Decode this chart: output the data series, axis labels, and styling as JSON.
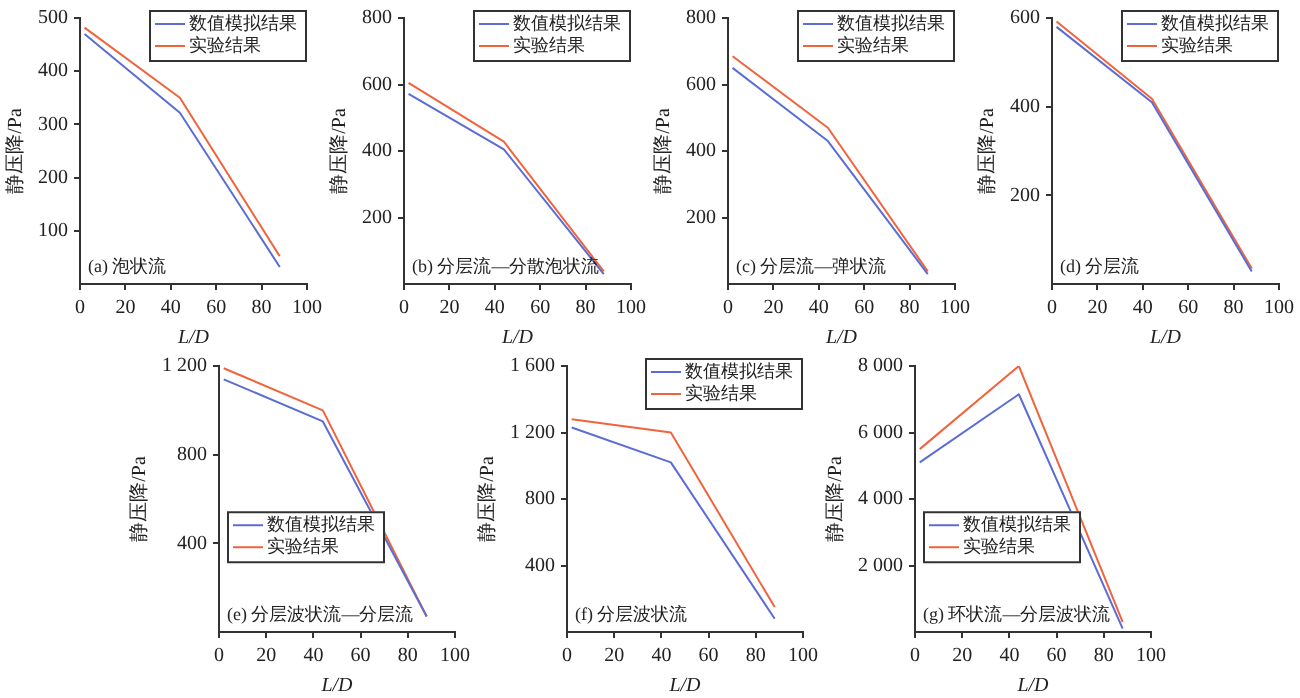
{
  "chart_data": [
    {
      "type": "line",
      "annotations": [
        "(a) 泡状流"
      ],
      "xlabel": "L/D",
      "ylabel": "静压降/Pa",
      "xlim": [
        0,
        100
      ],
      "xticks": [
        0,
        20,
        40,
        60,
        80,
        100
      ],
      "ylim": [
        0,
        500
      ],
      "yticks": [
        100,
        200,
        300,
        400,
        500
      ],
      "grid": false,
      "legend": "top right",
      "x": [
        2,
        44,
        88
      ],
      "series": [
        {
          "name": "数值模拟结果",
          "color": "#5b6cd4",
          "values": [
            470,
            322,
            32
          ]
        },
        {
          "name": "实验结果",
          "color": "#f0643c",
          "values": [
            482,
            350,
            52
          ]
        }
      ]
    },
    {
      "type": "line",
      "annotations": [
        "(b) 分层流—分散泡状流"
      ],
      "xlabel": "L/D",
      "ylabel": "静压降/Pa",
      "xlim": [
        0,
        100
      ],
      "xticks": [
        0,
        20,
        40,
        60,
        80,
        100
      ],
      "ylim": [
        0,
        800
      ],
      "yticks": [
        200,
        400,
        600,
        800
      ],
      "grid": false,
      "legend": "top right",
      "x": [
        2,
        44,
        88
      ],
      "series": [
        {
          "name": "数值模拟结果",
          "color": "#5b6cd4",
          "values": [
            572,
            405,
            30
          ]
        },
        {
          "name": "实验结果",
          "color": "#f0643c",
          "values": [
            605,
            428,
            38
          ]
        }
      ]
    },
    {
      "type": "line",
      "annotations": [
        "(c) 分层流—弹状流"
      ],
      "xlabel": "L/D",
      "ylabel": "静压降/Pa",
      "xlim": [
        0,
        100
      ],
      "xticks": [
        0,
        20,
        40,
        60,
        80,
        100
      ],
      "ylim": [
        0,
        800
      ],
      "yticks": [
        200,
        400,
        600,
        800
      ],
      "grid": false,
      "legend": "top right",
      "x": [
        2,
        44,
        88
      ],
      "series": [
        {
          "name": "数值模拟结果",
          "color": "#5b6cd4",
          "values": [
            650,
            430,
            30
          ]
        },
        {
          "name": "实验结果",
          "color": "#f0643c",
          "values": [
            685,
            470,
            38
          ]
        }
      ]
    },
    {
      "type": "line",
      "annotations": [
        "(d) 分层流"
      ],
      "xlabel": "L/D",
      "ylabel": "静压降/Pa",
      "xlim": [
        0,
        100
      ],
      "xticks": [
        0,
        20,
        40,
        60,
        80,
        100
      ],
      "ylim": [
        0,
        600
      ],
      "yticks": [
        200,
        400,
        600
      ],
      "grid": false,
      "legend": "top right",
      "x": [
        2,
        44,
        88
      ],
      "series": [
        {
          "name": "数值模拟结果",
          "color": "#5b6cd4",
          "values": [
            580,
            410,
            28
          ]
        },
        {
          "name": "实验结果",
          "color": "#f0643c",
          "values": [
            592,
            418,
            35
          ]
        }
      ]
    },
    {
      "type": "line",
      "annotations": [
        "(e) 分层波状流—分层流"
      ],
      "xlabel": "L/D",
      "ylabel": "静压降/Pa",
      "xlim": [
        0,
        100
      ],
      "xticks": [
        0,
        20,
        40,
        60,
        80,
        100
      ],
      "ylim": [
        0,
        1200
      ],
      "yticks": [
        400,
        800,
        {
          "value": 1200,
          "label": "1 200"
        }
      ],
      "grid": false,
      "legend": "left",
      "x": [
        2,
        44,
        88
      ],
      "series": [
        {
          "name": "数值模拟结果",
          "color": "#5b6cd4",
          "values": [
            1140,
            950,
            70
          ]
        },
        {
          "name": "实验结果",
          "color": "#f0643c",
          "values": [
            1190,
            1000,
            70
          ]
        }
      ]
    },
    {
      "type": "line",
      "annotations": [
        "(f) 分层波状流"
      ],
      "xlabel": "L/D",
      "ylabel": "静压降/Pa",
      "xlim": [
        0,
        100
      ],
      "xticks": [
        0,
        20,
        40,
        60,
        80,
        100
      ],
      "ylim": [
        0,
        1600
      ],
      "yticks": [
        400,
        800,
        {
          "value": 1200,
          "label": "1 200"
        },
        {
          "value": 1600,
          "label": "1 600"
        }
      ],
      "grid": false,
      "legend": "top right",
      "x": [
        2,
        44,
        88
      ],
      "series": [
        {
          "name": "数值模拟结果",
          "color": "#5b6cd4",
          "values": [
            1230,
            1020,
            80
          ]
        },
        {
          "name": "实验结果",
          "color": "#f0643c",
          "values": [
            1280,
            1200,
            150
          ]
        }
      ]
    },
    {
      "type": "line",
      "annotations": [
        "(g) 环状流—分层波状流"
      ],
      "xlabel": "L/D",
      "ylabel": "静压降/Pa",
      "xlim": [
        0,
        100
      ],
      "xticks": [
        0,
        20,
        40,
        60,
        80,
        100
      ],
      "ylim": [
        0,
        8000
      ],
      "yticks": [
        {
          "value": 2000,
          "label": "2 000"
        },
        {
          "value": 4000,
          "label": "4 000"
        },
        {
          "value": 6000,
          "label": "6 000"
        },
        {
          "value": 8000,
          "label": "8 000"
        }
      ],
      "grid": false,
      "legend": "left",
      "x": [
        2,
        44,
        88
      ],
      "series": [
        {
          "name": "数值模拟结果",
          "color": "#5b6cd4",
          "values": [
            5100,
            7150,
            100
          ]
        },
        {
          "name": "实验结果",
          "color": "#f0643c",
          "values": [
            5500,
            8000,
            300
          ]
        }
      ]
    }
  ]
}
